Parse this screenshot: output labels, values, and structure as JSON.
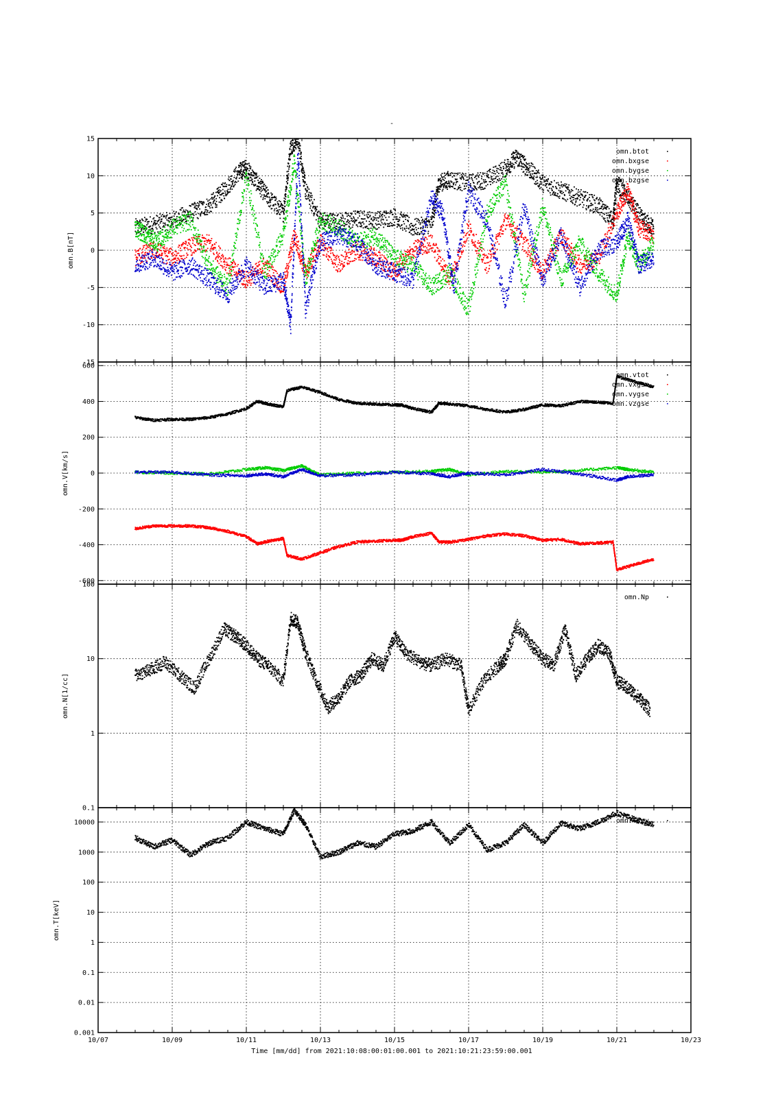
{
  "figure": {
    "top_mark": "-"
  },
  "x_axis": {
    "ticks": [
      "10/07",
      "10/09",
      "10/11",
      "10/13",
      "10/15",
      "10/17",
      "10/19",
      "10/21",
      "10/23"
    ],
    "tick_days": [
      7,
      9,
      11,
      13,
      15,
      17,
      19,
      21,
      23
    ],
    "range_days": [
      7,
      23
    ],
    "label": "Time [mm/dd]  from 2021:10:08:00:01:00.001  to  2021:10:21:23:59:00.001"
  },
  "chart_data": [
    {
      "type": "scatter",
      "ylabel": "omn.B[nT]",
      "yscale": "linear",
      "ylim": [
        -15,
        15
      ],
      "yticks": [
        15,
        10,
        5,
        0,
        -5,
        -10,
        -15
      ],
      "ytick_labels": [
        "15",
        "10",
        "5",
        "0",
        "-5",
        "-10",
        "-15"
      ],
      "grid": true,
      "legend_position": "top-right",
      "series": [
        {
          "name": "omn.btot",
          "color": "#000000",
          "x": [
            8.0,
            8.5,
            9.0,
            9.5,
            10.0,
            10.4,
            10.8,
            11.0,
            11.3,
            11.6,
            12.0,
            12.2,
            12.4,
            12.6,
            13.0,
            13.5,
            14.0,
            14.5,
            15.0,
            15.5,
            16.0,
            16.2,
            16.5,
            17.0,
            17.5,
            18.0,
            18.3,
            18.6,
            19.0,
            19.5,
            20.0,
            20.5,
            20.9,
            21.0,
            21.3,
            21.7,
            22.0
          ],
          "y": [
            3,
            3.5,
            4,
            5,
            6,
            8,
            10.5,
            11,
            9,
            7,
            5,
            14,
            15,
            8,
            4,
            3.8,
            4.2,
            4,
            4.5,
            3,
            3.5,
            9,
            9.5,
            9,
            9.5,
            11,
            12.5,
            11,
            9,
            8,
            7,
            6,
            4,
            9,
            7,
            4,
            3
          ]
        },
        {
          "name": "omn.bxgse",
          "color": "#ff0000",
          "x": [
            8.0,
            8.5,
            9.0,
            9.5,
            10.0,
            10.5,
            11.0,
            11.5,
            12.0,
            12.3,
            12.6,
            13.0,
            13.5,
            14.0,
            14.5,
            15.0,
            15.5,
            16.0,
            16.5,
            17.0,
            17.5,
            18.0,
            18.5,
            19.0,
            19.5,
            20.0,
            20.5,
            21.0,
            21.3,
            21.6,
            22.0
          ],
          "y": [
            -1,
            0,
            -1,
            0.5,
            1,
            -2,
            -4,
            -2,
            -5,
            2,
            -3,
            1,
            -2,
            0,
            -1,
            -3,
            0,
            1,
            -4,
            3,
            -2,
            4,
            1,
            -3,
            2,
            -2,
            -1,
            5,
            8,
            3,
            2
          ]
        },
        {
          "name": "omn.bygse",
          "color": "#00cc00",
          "x": [
            8.0,
            8.3,
            8.6,
            9.0,
            9.5,
            10.0,
            10.5,
            11.0,
            11.5,
            12.0,
            12.3,
            12.6,
            13.0,
            13.5,
            14.0,
            14.5,
            15.0,
            15.5,
            16.0,
            16.5,
            17.0,
            17.5,
            18.0,
            18.5,
            19.0,
            19.5,
            20.0,
            20.5,
            21.0,
            21.3,
            21.6,
            22.0
          ],
          "y": [
            3,
            2,
            1,
            3,
            4,
            -2,
            -5,
            10,
            -3,
            2,
            12,
            -4,
            4,
            3,
            1,
            2,
            -1,
            -2,
            -5,
            -3,
            -8,
            5,
            9,
            -6,
            6,
            -4,
            1,
            -3,
            -6,
            2,
            -2,
            1
          ]
        },
        {
          "name": "omn.bzgse",
          "color": "#0000cc",
          "x": [
            8.0,
            8.5,
            9.0,
            9.5,
            10.0,
            10.5,
            11.0,
            11.5,
            12.0,
            12.2,
            12.4,
            12.6,
            13.0,
            13.5,
            14.0,
            14.5,
            15.0,
            15.5,
            16.0,
            16.3,
            16.6,
            17.0,
            17.5,
            18.0,
            18.5,
            19.0,
            19.5,
            20.0,
            20.5,
            21.0,
            21.3,
            21.6,
            22.0
          ],
          "y": [
            -2,
            -1,
            -3,
            -2,
            -4,
            -6,
            -2,
            -5,
            -4,
            -10,
            13,
            -8,
            1,
            2,
            1,
            -2,
            -3,
            -4,
            7,
            5,
            -5,
            8,
            4,
            -7,
            6,
            -4,
            2,
            -5,
            0,
            1,
            4,
            -2,
            -1
          ]
        }
      ]
    },
    {
      "type": "scatter",
      "ylabel": "omn.V[km/s]",
      "yscale": "linear",
      "ylim": [
        -620,
        620
      ],
      "yticks": [
        600,
        400,
        200,
        0,
        -200,
        -400,
        -600
      ],
      "ytick_labels": [
        "600",
        "400",
        "200",
        "0",
        "-200",
        "-400",
        "-600"
      ],
      "grid": true,
      "legend_position": "top-right",
      "series": [
        {
          "name": "omn.vtot",
          "color": "#000000",
          "x": [
            8.0,
            8.5,
            9.0,
            9.5,
            10.0,
            10.5,
            11.0,
            11.3,
            11.6,
            12.0,
            12.1,
            12.5,
            13.0,
            13.5,
            14.0,
            14.5,
            15.0,
            15.2,
            15.5,
            16.0,
            16.2,
            16.5,
            17.0,
            17.5,
            18.0,
            18.5,
            19.0,
            19.5,
            20.0,
            20.5,
            20.9,
            21.0,
            21.5,
            22.0
          ],
          "y": [
            310,
            295,
            300,
            300,
            310,
            330,
            360,
            400,
            385,
            370,
            460,
            480,
            450,
            410,
            390,
            385,
            380,
            380,
            360,
            340,
            390,
            385,
            375,
            355,
            340,
            355,
            380,
            375,
            400,
            395,
            390,
            540,
            510,
            480
          ]
        },
        {
          "name": "omn.vxgse",
          "color": "#ff0000",
          "x": [
            8.0,
            8.5,
            9.0,
            9.5,
            10.0,
            10.5,
            11.0,
            11.3,
            11.6,
            12.0,
            12.1,
            12.5,
            13.0,
            13.5,
            14.0,
            14.5,
            15.0,
            15.2,
            15.5,
            16.0,
            16.2,
            16.5,
            17.0,
            17.5,
            18.0,
            18.5,
            19.0,
            19.5,
            20.0,
            20.5,
            20.9,
            21.0,
            21.5,
            22.0
          ],
          "y": [
            -310,
            -295,
            -295,
            -295,
            -305,
            -325,
            -355,
            -395,
            -380,
            -365,
            -460,
            -480,
            -445,
            -410,
            -385,
            -380,
            -375,
            -375,
            -355,
            -335,
            -385,
            -385,
            -370,
            -350,
            -340,
            -350,
            -375,
            -370,
            -395,
            -390,
            -385,
            -540,
            -510,
            -480
          ]
        },
        {
          "name": "omn.vygse",
          "color": "#00cc00",
          "x": [
            8.0,
            9.0,
            10.0,
            11.0,
            11.5,
            12.0,
            12.5,
            13.0,
            14.0,
            15.0,
            16.0,
            16.5,
            17.0,
            18.0,
            19.0,
            20.0,
            21.0,
            21.3,
            22.0
          ],
          "y": [
            5,
            0,
            -5,
            20,
            30,
            15,
            40,
            -10,
            0,
            5,
            10,
            20,
            -10,
            10,
            5,
            15,
            30,
            20,
            5
          ]
        },
        {
          "name": "omn.vzgse",
          "color": "#0000cc",
          "x": [
            8.0,
            9.0,
            10.0,
            11.0,
            11.5,
            12.0,
            12.5,
            13.0,
            14.0,
            15.0,
            16.0,
            16.5,
            17.0,
            18.0,
            19.0,
            20.0,
            21.0,
            21.3,
            22.0
          ],
          "y": [
            5,
            5,
            -10,
            -15,
            -5,
            -20,
            20,
            -15,
            -10,
            5,
            -5,
            -20,
            0,
            -10,
            20,
            -5,
            -40,
            -20,
            -10
          ]
        }
      ]
    },
    {
      "type": "scatter",
      "ylabel": "omn.N[1/cc]",
      "yscale": "log",
      "ylim": [
        0.1,
        100
      ],
      "yticks": [
        100,
        10,
        1,
        0.1
      ],
      "ytick_labels": [
        "100",
        "10",
        "1",
        "0.1"
      ],
      "grid": true,
      "legend_position": "top-right",
      "series": [
        {
          "name": "omn.Np",
          "color": "#000000",
          "x": [
            8.0,
            8.4,
            8.8,
            9.2,
            9.6,
            10.0,
            10.4,
            10.7,
            11.0,
            11.3,
            11.6,
            12.0,
            12.2,
            12.4,
            12.6,
            12.9,
            13.2,
            13.5,
            13.8,
            14.1,
            14.4,
            14.7,
            15.0,
            15.3,
            15.7,
            16.0,
            16.4,
            16.8,
            17.0,
            17.4,
            17.8,
            18.0,
            18.3,
            18.7,
            19.0,
            19.3,
            19.6,
            19.9,
            20.2,
            20.5,
            20.8,
            21.0,
            21.3,
            21.6,
            21.9
          ],
          "y": [
            6,
            7,
            9,
            6,
            4,
            10,
            25,
            20,
            15,
            10,
            8,
            5,
            35,
            30,
            12,
            5,
            2.2,
            3,
            5,
            6,
            10,
            8,
            20,
            12,
            9,
            8,
            10,
            8,
            2,
            5,
            8,
            10,
            28,
            15,
            10,
            8,
            25,
            6,
            10,
            15,
            12,
            5,
            4,
            3,
            2
          ]
        }
      ]
    },
    {
      "type": "scatter",
      "ylabel": "omn.T[keV]",
      "yscale": "log",
      "ylim": [
        0.001,
        30000
      ],
      "yticks": [
        10000,
        1000,
        100,
        10,
        1,
        0.1,
        0.01,
        0.001
      ],
      "ytick_labels": [
        "10000",
        "1000",
        "100",
        "10",
        "1",
        "0.1",
        "0.01",
        "0.001"
      ],
      "grid": true,
      "legend_position": "top-right",
      "series": [
        {
          "name": "omn.Tkev",
          "color": "#000000",
          "x": [
            8.0,
            8.5,
            9.0,
            9.5,
            10.0,
            10.5,
            11.0,
            11.5,
            12.0,
            12.3,
            12.6,
            13.0,
            13.5,
            14.0,
            14.5,
            15.0,
            15.5,
            16.0,
            16.5,
            17.0,
            17.5,
            18.0,
            18.5,
            19.0,
            19.5,
            20.0,
            20.5,
            21.0,
            21.5,
            22.0
          ],
          "y": [
            3000,
            1500,
            2500,
            800,
            2000,
            3000,
            10000,
            6000,
            4000,
            25000,
            8000,
            700,
            1000,
            2000,
            1500,
            4000,
            5000,
            10000,
            2000,
            8000,
            1200,
            2000,
            8000,
            2000,
            9000,
            6000,
            10000,
            20000,
            12000,
            8000
          ]
        }
      ]
    }
  ]
}
